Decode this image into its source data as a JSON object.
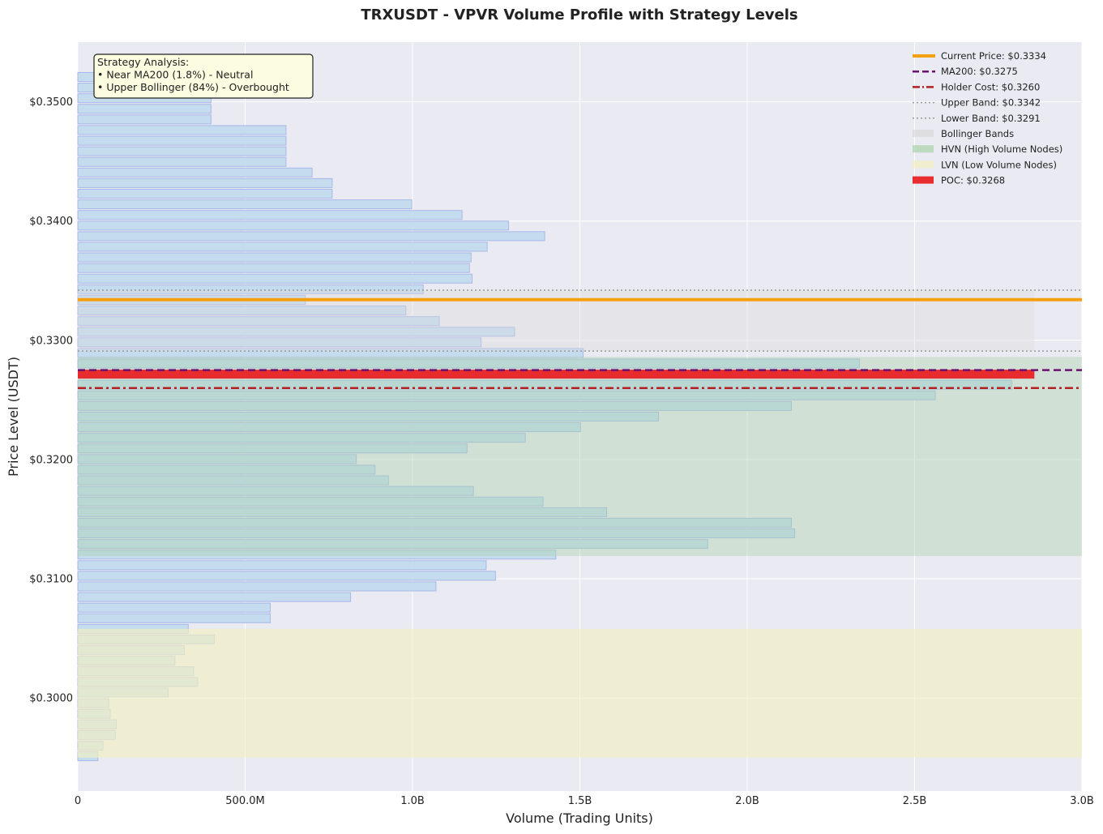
{
  "chart_data": {
    "type": "bar",
    "orientation": "horizontal",
    "title": "TRXUSDT - VPVR Volume Profile with Strategy Levels",
    "xlabel": "Volume (Trading Units)",
    "ylabel": "Price Level (USDT)",
    "xlim": [
      0,
      3000000000
    ],
    "ylim": [
      0.2922,
      0.355
    ],
    "grid": true,
    "legend_position": "top-right",
    "x_ticks": [
      {
        "value": 0,
        "label": "0"
      },
      {
        "value": 500000000,
        "label": "500.0M"
      },
      {
        "value": 1000000000,
        "label": "1.0B"
      },
      {
        "value": 1500000000,
        "label": "1.5B"
      },
      {
        "value": 2000000000,
        "label": "2.0B"
      },
      {
        "value": 2500000000,
        "label": "2.5B"
      },
      {
        "value": 3000000000,
        "label": "3.0B"
      }
    ],
    "y_ticks": [
      {
        "value": 0.3,
        "label": "$0.3000"
      },
      {
        "value": 0.31,
        "label": "$0.3100"
      },
      {
        "value": 0.32,
        "label": "$0.3200"
      },
      {
        "value": 0.33,
        "label": "$0.3300"
      },
      {
        "value": 0.34,
        "label": "$0.3400"
      },
      {
        "value": 0.35,
        "label": "$0.3500"
      }
    ],
    "bar_height": 0.00075,
    "bars": [
      {
        "price": 0.29512,
        "volume": 60000000
      },
      {
        "price": 0.29601,
        "volume": 75000000
      },
      {
        "price": 0.2969,
        "volume": 112000000
      },
      {
        "price": 0.29779,
        "volume": 115000000
      },
      {
        "price": 0.29868,
        "volume": 97000000
      },
      {
        "price": 0.29957,
        "volume": 92000000
      },
      {
        "price": 0.30046,
        "volume": 270000000
      },
      {
        "price": 0.30135,
        "volume": 358000000
      },
      {
        "price": 0.30224,
        "volume": 346000000
      },
      {
        "price": 0.30313,
        "volume": 290000000
      },
      {
        "price": 0.30402,
        "volume": 318000000
      },
      {
        "price": 0.30491,
        "volume": 408000000
      },
      {
        "price": 0.3058,
        "volume": 330000000
      },
      {
        "price": 0.30669,
        "volume": 575000000
      },
      {
        "price": 0.30758,
        "volume": 575000000
      },
      {
        "price": 0.30847,
        "volume": 815000000
      },
      {
        "price": 0.30936,
        "volume": 1070000000
      },
      {
        "price": 0.31025,
        "volume": 1248000000
      },
      {
        "price": 0.31114,
        "volume": 1220000000
      },
      {
        "price": 0.31203,
        "volume": 1428000000
      },
      {
        "price": 0.31292,
        "volume": 1882000000
      },
      {
        "price": 0.31381,
        "volume": 2142000000
      },
      {
        "price": 0.3147,
        "volume": 2132000000
      },
      {
        "price": 0.31559,
        "volume": 1580000000
      },
      {
        "price": 0.31648,
        "volume": 1390000000
      },
      {
        "price": 0.31737,
        "volume": 1182000000
      },
      {
        "price": 0.31826,
        "volume": 928000000
      },
      {
        "price": 0.31915,
        "volume": 888000000
      },
      {
        "price": 0.32004,
        "volume": 832000000
      },
      {
        "price": 0.32093,
        "volume": 1163000000
      },
      {
        "price": 0.32182,
        "volume": 1337000000
      },
      {
        "price": 0.32271,
        "volume": 1502000000
      },
      {
        "price": 0.3236,
        "volume": 1735000000
      },
      {
        "price": 0.32449,
        "volume": 2132000000
      },
      {
        "price": 0.32538,
        "volume": 2562000000
      },
      {
        "price": 0.32627,
        "volume": 2790000000
      },
      {
        "price": 0.32716,
        "volume": 2858000000,
        "poc": true
      },
      {
        "price": 0.32805,
        "volume": 2335000000
      },
      {
        "price": 0.32894,
        "volume": 1510000000
      },
      {
        "price": 0.32983,
        "volume": 1205000000
      },
      {
        "price": 0.33072,
        "volume": 1305000000
      },
      {
        "price": 0.33161,
        "volume": 1080000000
      },
      {
        "price": 0.3325,
        "volume": 980000000
      },
      {
        "price": 0.33339,
        "volume": 680000000
      },
      {
        "price": 0.33428,
        "volume": 1032000000
      },
      {
        "price": 0.33517,
        "volume": 1178000000
      },
      {
        "price": 0.33606,
        "volume": 1170000000
      },
      {
        "price": 0.33695,
        "volume": 1175000000
      },
      {
        "price": 0.33784,
        "volume": 1223000000
      },
      {
        "price": 0.33873,
        "volume": 1395000000
      },
      {
        "price": 0.33962,
        "volume": 1287000000
      },
      {
        "price": 0.34051,
        "volume": 1148000000
      },
      {
        "price": 0.3414,
        "volume": 998000000
      },
      {
        "price": 0.34229,
        "volume": 760000000
      },
      {
        "price": 0.34318,
        "volume": 760000000
      },
      {
        "price": 0.34407,
        "volume": 700000000
      },
      {
        "price": 0.34496,
        "volume": 622000000
      },
      {
        "price": 0.34585,
        "volume": 622000000
      },
      {
        "price": 0.34674,
        "volume": 622000000
      },
      {
        "price": 0.34763,
        "volume": 622000000
      },
      {
        "price": 0.34852,
        "volume": 398000000
      },
      {
        "price": 0.34941,
        "volume": 398000000
      },
      {
        "price": 0.3503,
        "volume": 398000000
      },
      {
        "price": 0.35119,
        "volume": 398000000
      },
      {
        "price": 0.35208,
        "volume": 398000000
      }
    ],
    "zones": {
      "bollinger": {
        "low": 0.3291,
        "high": 0.3342,
        "volume_extent": 2858000000
      },
      "hvn": {
        "low": 0.3119,
        "high": 0.3286
      },
      "lvn": {
        "low": 0.295,
        "high": 0.3058
      }
    },
    "levels": {
      "current_price": 0.3334,
      "ma200": 0.3275,
      "holder_cost": 0.326,
      "upper_band": 0.3342,
      "lower_band": 0.3291,
      "poc": 0.3268
    },
    "colors": {
      "plot_bg": "#eaeaf2",
      "bar_fill": "#c5dcef",
      "bar_edge": "#a9b8e8",
      "bollinger_fill": "#d9d9d9",
      "hvn_fill": "#a9d1a9",
      "lvn_fill": "#f2f0c0",
      "current_price": "#f5a011",
      "ma200": "#6b1071",
      "holder_cost": "#b22222",
      "band_line": "#9a9a9a",
      "poc": "#e8181a",
      "annotation_bg": "#fbfce0"
    },
    "legend": [
      {
        "label": "Current Price: $0.3334",
        "style": "line-solid-thick",
        "color": "#f5a011",
        "icon": "solid-line-icon"
      },
      {
        "label": "MA200: $0.3275",
        "style": "line-dashed",
        "color": "#6b1071",
        "icon": "dashed-line-icon"
      },
      {
        "label": "Holder Cost: $0.3260",
        "style": "line-dashdot",
        "color": "#b22222",
        "icon": "dashdot-line-icon"
      },
      {
        "label": "Upper Band: $0.3342",
        "style": "line-dotted",
        "color": "#9a9a9a",
        "icon": "dotted-line-icon"
      },
      {
        "label": "Lower Band: $0.3291",
        "style": "line-dotted",
        "color": "#9a9a9a",
        "icon": "dotted-line-icon"
      },
      {
        "label": "Bollinger Bands",
        "style": "patch",
        "color": "#d9d9d9",
        "icon": "patch-icon"
      },
      {
        "label": "HVN (High Volume Nodes)",
        "style": "patch",
        "color": "#a9d1a9",
        "icon": "patch-icon"
      },
      {
        "label": "LVN (Low Volume Nodes)",
        "style": "patch",
        "color": "#f2f0c0",
        "icon": "patch-icon"
      },
      {
        "label": "POC: $0.3268",
        "style": "patch",
        "color": "#e8181a",
        "icon": "patch-icon"
      }
    ],
    "annotation": {
      "lines": [
        "Strategy Analysis:",
        "• Near MA200 (1.8%) - Neutral",
        "• Upper Bollinger (84%) - Overbought"
      ]
    }
  }
}
